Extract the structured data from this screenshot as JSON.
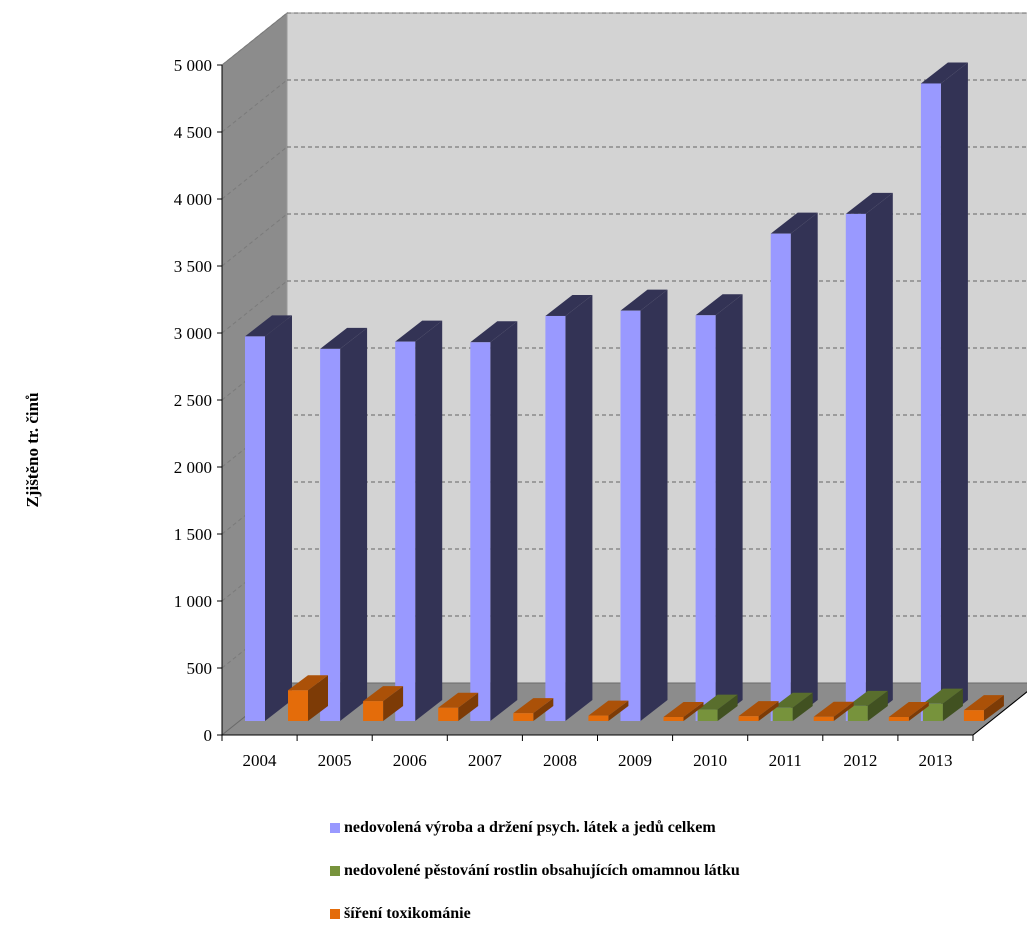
{
  "chart_data": {
    "type": "bar",
    "categories": [
      "2004",
      "2005",
      "2006",
      "2007",
      "2008",
      "2009",
      "2010",
      "2011",
      "2012",
      "2013"
    ],
    "series": [
      {
        "name": "nedovolená výroba a držení psych. látek a jedů celkem",
        "color": "#9999ff",
        "values": [
          2920,
          2825,
          2880,
          2875,
          3075,
          3115,
          3080,
          3700,
          3850,
          4840
        ]
      },
      {
        "name": "nedovolené pěstování rostlin obsahujících omamnou látku",
        "color": "#77933c",
        "values": [
          0,
          0,
          0,
          0,
          0,
          0,
          155,
          180,
          205,
          235
        ]
      },
      {
        "name": "šíření toxikománie",
        "color": "#e46c0a",
        "values": [
          255,
          165,
          110,
          65,
          45,
          25,
          40,
          35,
          30,
          90
        ]
      }
    ],
    "ylabel": "Zjištěno tr. činů",
    "yticks": [
      "0",
      "500",
      "1 000",
      "1 500",
      "2 000",
      "2 500",
      "3 000",
      "3 500",
      "4 000",
      "4 500",
      "5 000"
    ],
    "ylim": [
      0,
      5000
    ],
    "grid": true,
    "legend": "bottom"
  }
}
